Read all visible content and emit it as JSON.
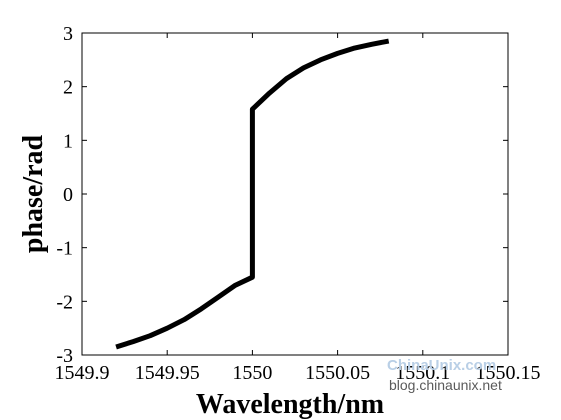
{
  "chart_data": {
    "type": "line",
    "xlabel": "Wavelength/nm",
    "ylabel": "phase/rad",
    "xlim": [
      1549.9,
      1550.15
    ],
    "ylim": [
      -3,
      3
    ],
    "xticks": [
      1549.9,
      1549.95,
      1550,
      1550.05,
      1550.1,
      1550.15
    ],
    "xtick_labels": [
      "1549.9",
      "1549.95",
      "1550",
      "1550.05",
      "1550.1",
      "1550.15"
    ],
    "yticks": [
      -3,
      -2,
      -1,
      0,
      1,
      2,
      3
    ],
    "ytick_labels": [
      "-3",
      "-2",
      "-1",
      "0",
      "1",
      "2",
      "3"
    ],
    "grid": false,
    "series": [
      {
        "color": "#000000",
        "x": [
          1549.92,
          1549.93,
          1549.94,
          1549.95,
          1549.96,
          1549.97,
          1549.98,
          1549.99,
          1550.0,
          1550.0,
          1550.01,
          1550.02,
          1550.03,
          1550.04,
          1550.05,
          1550.06,
          1550.07,
          1550.08
        ],
        "y": [
          -2.85,
          -2.75,
          -2.64,
          -2.5,
          -2.34,
          -2.14,
          -1.92,
          -1.7,
          -1.55,
          1.58,
          1.88,
          2.15,
          2.35,
          2.5,
          2.62,
          2.72,
          2.79,
          2.85
        ]
      }
    ]
  },
  "watermark": {
    "brand": "ChinaUnix.com",
    "url": "blog.chinaunix.net"
  }
}
